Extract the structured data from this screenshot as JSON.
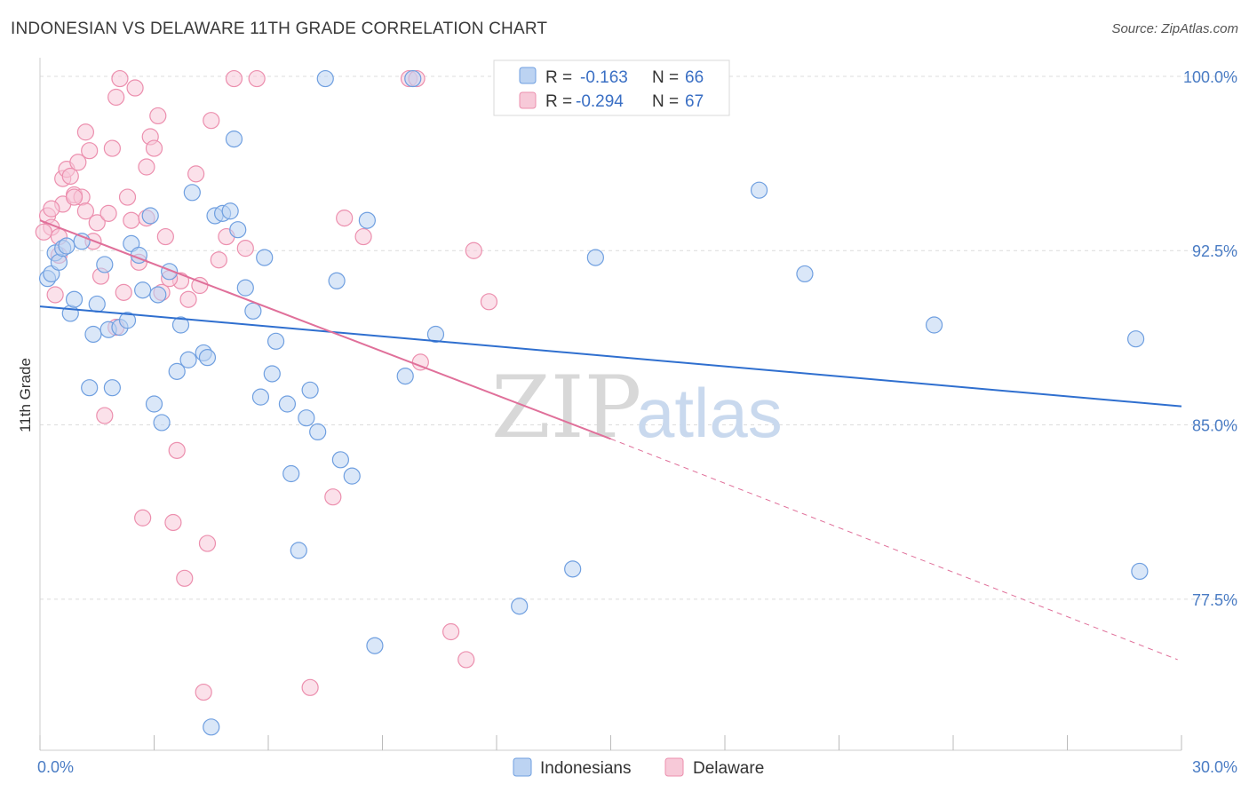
{
  "title": "INDONESIAN VS DELAWARE 11TH GRADE CORRELATION CHART",
  "source": "Source: ZipAtlas.com",
  "watermark": {
    "zip": "ZIP",
    "atlas": "atlas"
  },
  "colors": {
    "indonesians": "#6f9fe0",
    "indonesians_fill": "#bcd3f2",
    "delaware": "#ec8fae",
    "delaware_fill": "#f7c9d8",
    "trend_blue": "#2f6fcf",
    "trend_pink": "#e0709a",
    "tick_text": "#4a7cc4"
  },
  "legend": {
    "rows": [
      {
        "r_label": "R =",
        "r_value": "-0.163",
        "n_label": "N =",
        "n_value": "66"
      },
      {
        "r_label": "R =",
        "r_value": "-0.294",
        "n_label": "N =",
        "n_value": "67"
      }
    ]
  },
  "chart_data": {
    "type": "scatter",
    "title": "INDONESIAN VS DELAWARE 11TH GRADE CORRELATION CHART",
    "xlabel": "",
    "ylabel": "11th Grade",
    "xlim": [
      0.0,
      30.0
    ],
    "ylim": [
      71.0,
      100.8
    ],
    "x_tick_labels": [
      "0.0%",
      "30.0%"
    ],
    "y_ticks": [
      77.5,
      85.0,
      92.5,
      100.0
    ],
    "y_tick_labels": [
      "77.5%",
      "85.0%",
      "92.5%",
      "100.0%"
    ],
    "grid": true,
    "legend_position": "top-center",
    "series": [
      {
        "name": "Indonesians",
        "trend": {
          "x0": 0.0,
          "y0": 90.1,
          "x1": 30.0,
          "y1": 85.8
        },
        "points": [
          [
            0.2,
            91.3
          ],
          [
            0.3,
            91.5
          ],
          [
            0.4,
            92.4
          ],
          [
            0.5,
            92.0
          ],
          [
            0.6,
            92.6
          ],
          [
            0.8,
            89.8
          ],
          [
            0.9,
            90.4
          ],
          [
            1.1,
            92.9
          ],
          [
            1.3,
            86.6
          ],
          [
            1.4,
            88.9
          ],
          [
            1.5,
            90.2
          ],
          [
            1.7,
            91.9
          ],
          [
            1.8,
            89.1
          ],
          [
            1.9,
            86.6
          ],
          [
            2.1,
            89.2
          ],
          [
            2.3,
            89.5
          ],
          [
            2.4,
            92.8
          ],
          [
            2.6,
            92.3
          ],
          [
            2.7,
            90.8
          ],
          [
            2.9,
            94.0
          ],
          [
            3.0,
            85.9
          ],
          [
            3.2,
            85.1
          ],
          [
            3.4,
            91.6
          ],
          [
            3.6,
            87.3
          ],
          [
            3.7,
            89.3
          ],
          [
            3.9,
            87.8
          ],
          [
            4.0,
            95.0
          ],
          [
            4.3,
            88.1
          ],
          [
            4.4,
            87.9
          ],
          [
            4.5,
            72.0
          ],
          [
            4.6,
            94.0
          ],
          [
            4.8,
            94.1
          ],
          [
            5.0,
            94.2
          ],
          [
            5.1,
            97.3
          ],
          [
            5.2,
            93.4
          ],
          [
            5.4,
            90.9
          ],
          [
            5.6,
            89.9
          ],
          [
            5.8,
            86.2
          ],
          [
            5.9,
            92.2
          ],
          [
            6.1,
            87.2
          ],
          [
            6.2,
            88.6
          ],
          [
            6.5,
            85.9
          ],
          [
            6.6,
            82.9
          ],
          [
            6.8,
            79.6
          ],
          [
            7.0,
            85.3
          ],
          [
            7.1,
            86.5
          ],
          [
            7.3,
            84.7
          ],
          [
            7.5,
            99.9
          ],
          [
            7.8,
            91.2
          ],
          [
            7.9,
            83.5
          ],
          [
            8.2,
            82.8
          ],
          [
            8.6,
            93.8
          ],
          [
            8.8,
            75.5
          ],
          [
            9.6,
            87.1
          ],
          [
            9.8,
            99.9
          ],
          [
            10.4,
            88.9
          ],
          [
            12.6,
            77.2
          ],
          [
            14.0,
            78.8
          ],
          [
            14.6,
            92.2
          ],
          [
            18.9,
            95.1
          ],
          [
            20.1,
            91.5
          ],
          [
            23.5,
            89.3
          ],
          [
            28.8,
            88.7
          ],
          [
            28.9,
            78.7
          ],
          [
            0.7,
            92.7
          ],
          [
            3.1,
            90.6
          ]
        ]
      },
      {
        "name": "Delaware",
        "trend": {
          "x0": 0.0,
          "y0": 93.8,
          "x1": 15.0,
          "y1": 84.4
        },
        "trend_dashed": {
          "x0": 15.0,
          "y0": 84.4,
          "x1": 29.9,
          "y1": 74.9
        },
        "points": [
          [
            0.2,
            94.0
          ],
          [
            0.3,
            93.5
          ],
          [
            0.4,
            90.6
          ],
          [
            0.5,
            93.1
          ],
          [
            0.6,
            94.5
          ],
          [
            0.6,
            95.6
          ],
          [
            0.7,
            96.0
          ],
          [
            0.8,
            95.7
          ],
          [
            0.9,
            94.9
          ],
          [
            1.0,
            96.3
          ],
          [
            1.1,
            94.8
          ],
          [
            1.2,
            97.6
          ],
          [
            1.3,
            96.8
          ],
          [
            1.4,
            92.9
          ],
          [
            1.5,
            93.7
          ],
          [
            1.6,
            91.4
          ],
          [
            1.7,
            85.4
          ],
          [
            1.8,
            94.1
          ],
          [
            1.9,
            96.9
          ],
          [
            2.0,
            99.1
          ],
          [
            2.1,
            99.9
          ],
          [
            2.2,
            90.7
          ],
          [
            2.3,
            94.8
          ],
          [
            2.4,
            93.8
          ],
          [
            2.5,
            99.5
          ],
          [
            2.6,
            92.0
          ],
          [
            2.7,
            81.0
          ],
          [
            2.8,
            96.1
          ],
          [
            2.9,
            97.4
          ],
          [
            3.0,
            96.9
          ],
          [
            3.1,
            98.3
          ],
          [
            3.2,
            90.7
          ],
          [
            3.3,
            93.1
          ],
          [
            3.5,
            80.8
          ],
          [
            3.6,
            83.9
          ],
          [
            3.7,
            91.2
          ],
          [
            3.8,
            78.4
          ],
          [
            3.9,
            90.4
          ],
          [
            4.1,
            95.8
          ],
          [
            4.3,
            73.5
          ],
          [
            4.4,
            79.9
          ],
          [
            4.5,
            98.1
          ],
          [
            4.9,
            93.1
          ],
          [
            5.1,
            99.9
          ],
          [
            5.4,
            92.6
          ],
          [
            5.7,
            99.9
          ],
          [
            7.1,
            73.7
          ],
          [
            7.7,
            81.9
          ],
          [
            8.0,
            93.9
          ],
          [
            8.5,
            93.1
          ],
          [
            9.7,
            99.9
          ],
          [
            10.0,
            87.7
          ],
          [
            10.8,
            76.1
          ],
          [
            11.2,
            74.9
          ],
          [
            11.4,
            92.5
          ],
          [
            11.8,
            90.3
          ],
          [
            0.3,
            94.3
          ],
          [
            0.5,
            92.3
          ],
          [
            0.9,
            94.8
          ],
          [
            1.2,
            94.2
          ],
          [
            2.0,
            89.2
          ],
          [
            2.8,
            93.9
          ],
          [
            3.4,
            91.3
          ],
          [
            4.2,
            91.0
          ],
          [
            4.7,
            92.1
          ],
          [
            9.9,
            99.9
          ],
          [
            0.1,
            93.3
          ]
        ]
      }
    ]
  },
  "bottom_legend": {
    "items": [
      {
        "label": "Indonesians"
      },
      {
        "label": "Delaware"
      }
    ]
  }
}
